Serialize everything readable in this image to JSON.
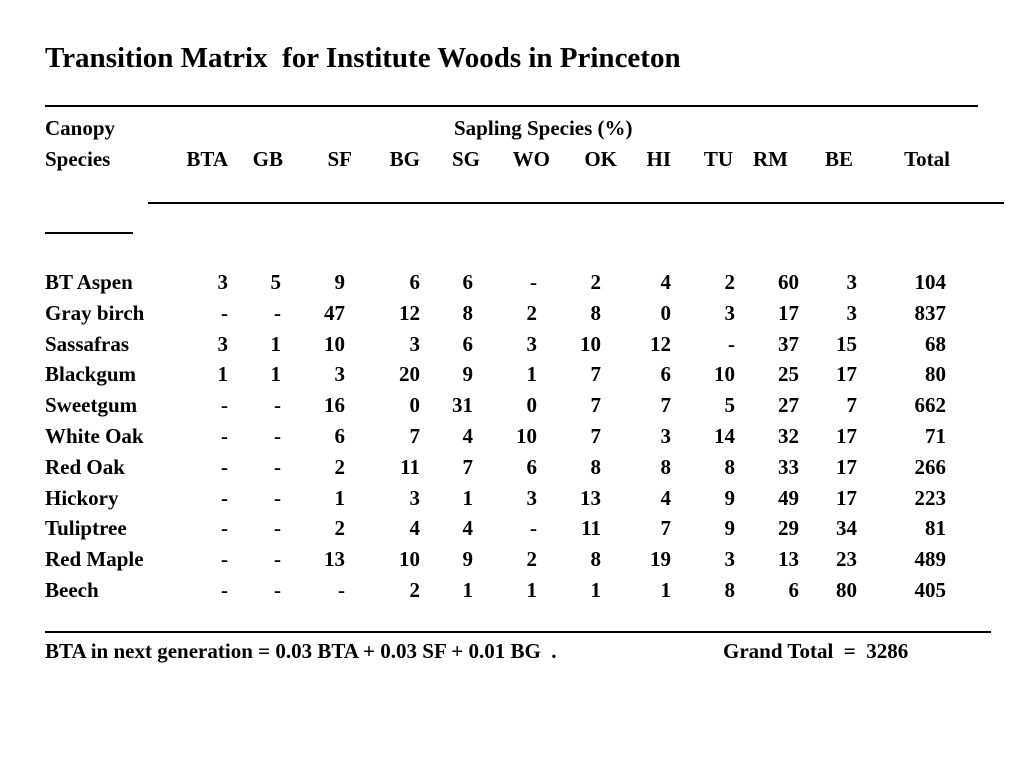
{
  "title": "Transition Matrix  for Institute Woods in Princeton",
  "header": {
    "canopy": "Canopy",
    "species": "Species",
    "sapling_species": "Sapling Species (%)",
    "columns": [
      "BTA",
      "GB",
      "SF",
      "BG",
      "SG",
      "WO",
      "OK",
      "HI",
      "TU",
      "RM",
      "BE",
      "Total"
    ]
  },
  "rows": [
    {
      "name": "BT Aspen",
      "values": [
        "3",
        "5",
        "9",
        "6",
        "6",
        "-",
        "2",
        "4",
        "2",
        "60",
        "3",
        "104"
      ]
    },
    {
      "name": "Gray birch",
      "values": [
        "-",
        "-",
        "47",
        "12",
        "8",
        "2",
        "8",
        "0",
        "3",
        "17",
        "3",
        "837"
      ]
    },
    {
      "name": "Sassafras",
      "values": [
        "3",
        "1",
        "10",
        "3",
        "6",
        "3",
        "10",
        "12",
        "-",
        "37",
        "15",
        "68"
      ]
    },
    {
      "name": "Blackgum",
      "values": [
        "1",
        "1",
        "3",
        "20",
        "9",
        "1",
        "7",
        "6",
        "10",
        "25",
        "17",
        "80"
      ]
    },
    {
      "name": "Sweetgum",
      "values": [
        "-",
        "-",
        "16",
        "0",
        "31",
        "0",
        "7",
        "7",
        "5",
        "27",
        "7",
        "662"
      ]
    },
    {
      "name": "White Oak",
      "values": [
        "-",
        "-",
        "6",
        "7",
        "4",
        "10",
        "7",
        "3",
        "14",
        "32",
        "17",
        "71"
      ]
    },
    {
      "name": "Red Oak",
      "values": [
        "-",
        "-",
        "2",
        "11",
        "7",
        "6",
        "8",
        "8",
        "8",
        "33",
        "17",
        "266"
      ]
    },
    {
      "name": "Hickory",
      "values": [
        "-",
        "-",
        "1",
        "3",
        "1",
        "3",
        "13",
        "4",
        "9",
        "49",
        "17",
        "223"
      ]
    },
    {
      "name": "Tuliptree",
      "values": [
        "-",
        "-",
        "2",
        "4",
        "4",
        "-",
        "11",
        "7",
        "9",
        "29",
        "34",
        "81"
      ]
    },
    {
      "name": "Red Maple",
      "values": [
        "-",
        "-",
        "13",
        "10",
        "9",
        "2",
        "8",
        "19",
        "3",
        "13",
        "23",
        "489"
      ]
    },
    {
      "name": "Beech",
      "values": [
        "-",
        "-",
        "-",
        "2",
        "1",
        "1",
        "1",
        "1",
        "8",
        "6",
        "80",
        "405"
      ]
    }
  ],
  "footer": {
    "equation": "BTA in next generation = 0.03 BTA + 0.03 SF + 0.01 BG  .",
    "grand_total": "Grand Total  =  3286"
  }
}
